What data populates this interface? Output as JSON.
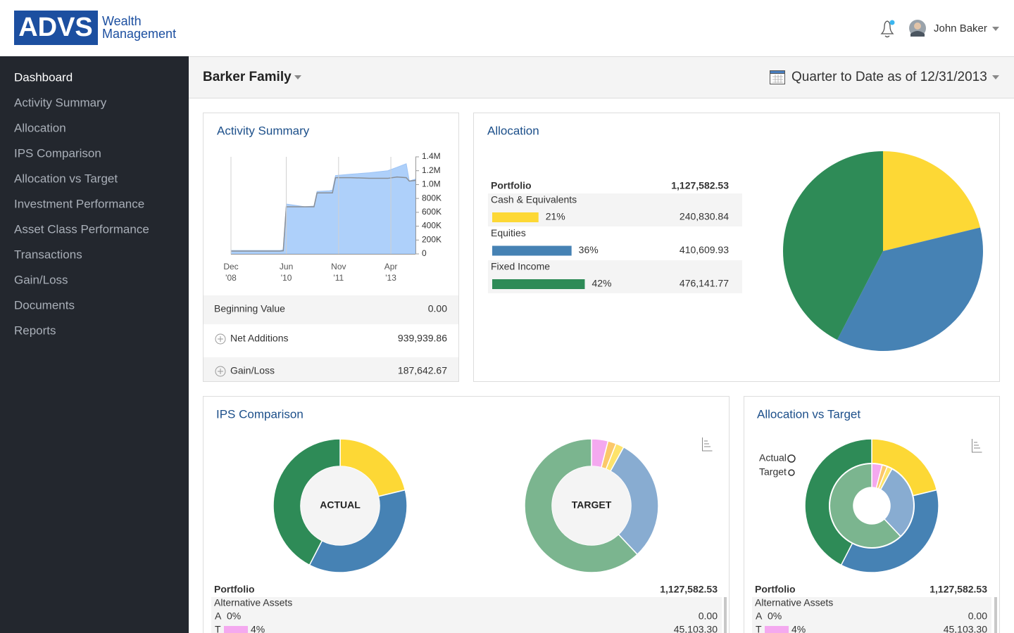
{
  "header": {
    "logo": "ADVS",
    "logo_sub": [
      "Wealth",
      "Management"
    ],
    "user": "John Baker"
  },
  "nav": [
    "Dashboard",
    "Activity Summary",
    "Allocation",
    "IPS Comparison",
    "Allocation vs Target",
    "Investment Performance",
    "Asset Class Performance",
    "Transactions",
    "Gain/Loss",
    "Documents",
    "Reports"
  ],
  "toolbar": {
    "client": "Barker Family",
    "period": "Quarter to Date as of 12/31/2013"
  },
  "activity": {
    "title": "Activity Summary",
    "chart_data": {
      "type": "area",
      "x": [
        "2008-12",
        "2009-06",
        "2009-12",
        "2010-04",
        "2010-05",
        "2010-06",
        "2010-09",
        "2010-12",
        "2011-03",
        "2011-04",
        "2011-08",
        "2011-09",
        "2011-10",
        "2012-03",
        "2012-09",
        "2013-03",
        "2013-06",
        "2013-09",
        "2013-10",
        "2013-12"
      ],
      "series": [
        {
          "color": "#aed0fa",
          "values": [
            50000,
            50000,
            50000,
            50000,
            60000,
            720000,
            700000,
            680000,
            690000,
            900000,
            910000,
            920000,
            1130000,
            1150000,
            1170000,
            1200000,
            1250000,
            1300000,
            1050000,
            1080000
          ]
        },
        {
          "color": "#8a8f96",
          "values": [
            40000,
            40000,
            40000,
            40000,
            45000,
            680000,
            680000,
            680000,
            680000,
            880000,
            880000,
            880000,
            1100000,
            1100000,
            1090000,
            1090000,
            1110000,
            1100000,
            1050000,
            1060000
          ]
        }
      ],
      "xlim": [
        "2008-12",
        "2013-12"
      ],
      "xticks": [
        {
          "value": "2008-12",
          "label": "Dec '08"
        },
        {
          "value": "2010-06",
          "label": "Jun '10"
        },
        {
          "value": "2011-11",
          "label": "Nov '11"
        },
        {
          "value": "2013-04",
          "label": "Apr '13"
        }
      ],
      "ylim": [
        0,
        1400000
      ],
      "yticks": [
        0,
        {
          "value": 200000,
          "label": "200K"
        },
        {
          "value": 400000,
          "label": "400K"
        },
        {
          "value": 600000,
          "label": "600K"
        },
        {
          "value": 800000,
          "label": "800K"
        },
        {
          "value": 1000000,
          "label": "1.0M"
        },
        {
          "value": 1200000,
          "label": "1.2M"
        },
        {
          "value": 1400000,
          "label": "1.4M"
        }
      ],
      "grid": true
    },
    "rows": [
      {
        "label": "Beginning Value",
        "value": "0.00"
      },
      {
        "label": "Net Additions",
        "value": "939,939.86"
      },
      {
        "label": "Gain/Loss",
        "value": "187,642.67"
      }
    ]
  },
  "allocation": {
    "title": "Allocation",
    "total_label": "Portfolio",
    "total": "1,127,582.53",
    "chart_data": {
      "type": "pie",
      "categories": [
        "Cash & Equivalents",
        "Equities",
        "Fixed Income"
      ],
      "values": [
        21,
        36,
        42
      ],
      "value_labels": [
        "21%",
        "36%",
        "42%"
      ],
      "amounts": [
        "240,830.84",
        "410,609.93",
        "476,141.77"
      ],
      "colors": [
        "#fdd835",
        "#4682b4",
        "#2e8b57"
      ]
    }
  },
  "ips": {
    "title": "IPS Comparison",
    "charts": [
      {
        "type": "donut",
        "label": "ACTUAL",
        "values": [
          21,
          36,
          42
        ],
        "colors": [
          "#fdd835",
          "#4682b4",
          "#2e8b57"
        ]
      },
      {
        "type": "donut",
        "label": "TARGET",
        "values": [
          4,
          2,
          2,
          30,
          62
        ],
        "colors": [
          "#f4a9ef",
          "#fbc86a",
          "#fde36b",
          "#88acd1",
          "#7bb58f"
        ]
      }
    ],
    "table": {
      "total_label": "Portfolio",
      "total": "1,127,582.53",
      "category": "Alternative Assets",
      "rows": [
        {
          "key": "A",
          "pct": 0,
          "pct_label": "0%",
          "value": "0.00"
        },
        {
          "key": "T",
          "pct": 4,
          "pct_label": "4%",
          "value": "45,103.30"
        }
      ]
    }
  },
  "avt": {
    "title": "Allocation vs Target",
    "legend": [
      "Actual",
      "Target"
    ],
    "chart_data": {
      "type": "nested-donut",
      "outer": {
        "values": [
          21,
          36,
          42
        ],
        "colors": [
          "#fdd835",
          "#4682b4",
          "#2e8b57"
        ]
      },
      "inner": {
        "values": [
          4,
          2,
          2,
          30,
          62
        ],
        "colors": [
          "#f4a9ef",
          "#fbc86a",
          "#fde36b",
          "#88acd1",
          "#7bb58f"
        ]
      }
    },
    "table": {
      "total_label": "Portfolio",
      "total": "1,127,582.53",
      "category": "Alternative Assets",
      "rows": [
        {
          "key": "A",
          "pct": 0,
          "pct_label": "0%",
          "value": "0.00"
        },
        {
          "key": "T",
          "pct": 4,
          "pct_label": "4%",
          "value": "45,103.30"
        }
      ]
    }
  }
}
